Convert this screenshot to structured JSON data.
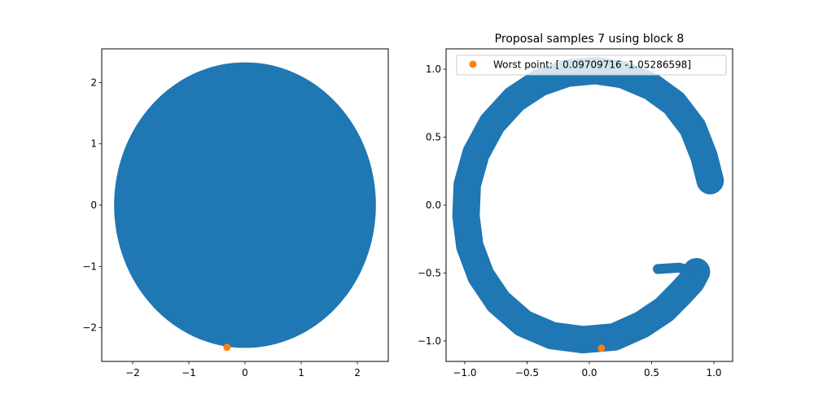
{
  "figure": {
    "background": "#ffffff"
  },
  "chart_data": [
    {
      "type": "scatter",
      "title": "",
      "xlabel": "",
      "ylabel": "",
      "xlim": [
        -2.55,
        2.55
      ],
      "ylim": [
        -2.55,
        2.55
      ],
      "xticks": [
        -2,
        -1,
        0,
        1,
        2
      ],
      "yticks": [
        -2,
        -1,
        0,
        1,
        2
      ],
      "xtick_labels": [
        "−2",
        "−1",
        "0",
        "1",
        "2"
      ],
      "ytick_labels": [
        "−2",
        "−1",
        "0",
        "1",
        "2"
      ],
      "grid": false,
      "series": [
        {
          "kind": "filled-disk",
          "color": "#1f77b4",
          "center": [
            0.0,
            0.0
          ],
          "radius": 2.33
        },
        {
          "kind": "point",
          "color": "#ff7f0e",
          "x": -0.32,
          "y": -2.32
        }
      ]
    },
    {
      "type": "scatter",
      "title": "Proposal samples 7 using block 8",
      "xlabel": "",
      "ylabel": "",
      "xlim": [
        -1.15,
        1.15
      ],
      "ylim": [
        -1.15,
        1.15
      ],
      "xticks": [
        -1.0,
        -0.5,
        0.0,
        0.5,
        1.0
      ],
      "yticks": [
        -1.0,
        -0.5,
        0.0,
        0.5,
        1.0
      ],
      "xtick_labels": [
        "−1.0",
        "−0.5",
        "0.0",
        "0.5",
        "1.0"
      ],
      "ytick_labels": [
        "−1.0",
        "−0.5",
        "0.0",
        "0.5",
        "1.0"
      ],
      "grid": false,
      "legend_position": "top-right",
      "series": [
        {
          "kind": "ring-band",
          "color": "#1f77b4",
          "center": [
            -0.02,
            -0.07
          ],
          "radius": 0.9,
          "width": 0.22,
          "gap_from_deg": -25,
          "gap_to_deg": 5,
          "path": [
            [
              0.97,
              0.18
            ],
            [
              0.92,
              0.36
            ],
            [
              0.83,
              0.57
            ],
            [
              0.68,
              0.75
            ],
            [
              0.5,
              0.87
            ],
            [
              0.27,
              0.96
            ],
            [
              0.05,
              0.99
            ],
            [
              -0.18,
              0.97
            ],
            [
              -0.4,
              0.9
            ],
            [
              -0.6,
              0.78
            ],
            [
              -0.78,
              0.6
            ],
            [
              -0.91,
              0.38
            ],
            [
              -0.98,
              0.15
            ],
            [
              -0.99,
              -0.08
            ],
            [
              -0.96,
              -0.3
            ],
            [
              -0.87,
              -0.52
            ],
            [
              -0.73,
              -0.71
            ],
            [
              -0.53,
              -0.87
            ],
            [
              -0.3,
              -0.96
            ],
            [
              -0.05,
              -0.99
            ],
            [
              0.2,
              -0.97
            ],
            [
              0.42,
              -0.88
            ],
            [
              0.6,
              -0.77
            ],
            [
              0.73,
              -0.65
            ],
            [
              0.82,
              -0.56
            ],
            [
              0.86,
              -0.49
            ]
          ]
        },
        {
          "kind": "tail",
          "color": "#1f77b4",
          "path": [
            [
              0.86,
              -0.49
            ],
            [
              0.72,
              -0.46
            ],
            [
              0.55,
              -0.47
            ]
          ],
          "width": 0.08
        },
        {
          "kind": "point",
          "name": "Worst point: [ 0.09709716 -1.05286598]",
          "color": "#ff7f0e",
          "x": 0.09709716,
          "y": -1.05286598
        }
      ],
      "legend": {
        "label": "Worst point: [ 0.09709716 -1.05286598]",
        "marker_color": "#ff7f0e"
      }
    }
  ]
}
